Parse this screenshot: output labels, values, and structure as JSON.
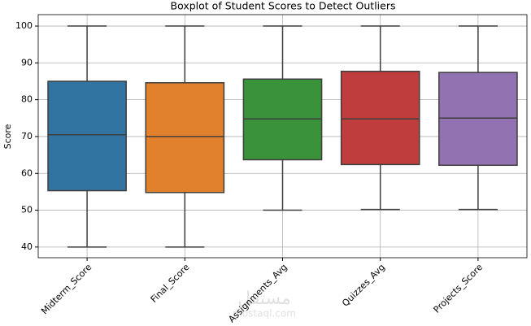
{
  "chart_data": {
    "type": "box",
    "title": "Boxplot of Student Scores to Detect Outliers",
    "y_label": "Score",
    "categories": [
      "Midterm_Score",
      "Final_Score",
      "Assignments_Avg",
      "Quizzes_Avg",
      "Projects_Score"
    ],
    "boxes": [
      {
        "min": 40,
        "q1": 55.3,
        "median": 70.5,
        "q3": 85,
        "max": 100
      },
      {
        "min": 40,
        "q1": 54.8,
        "median": 70,
        "q3": 84.6,
        "max": 100
      },
      {
        "min": 50,
        "q1": 63.7,
        "median": 74.8,
        "q3": 85.6,
        "max": 100
      },
      {
        "min": 50.2,
        "q1": 62.4,
        "median": 74.8,
        "q3": 87.7,
        "max": 100
      },
      {
        "min": 50.2,
        "q1": 62.2,
        "median": 75,
        "q3": 87.4,
        "max": 100
      }
    ],
    "colors": [
      "#3274a1",
      "#e1812c",
      "#3a923a",
      "#c03d3e",
      "#9372b2"
    ],
    "ylim": [
      37.1,
      103.1
    ],
    "yticks": [
      40,
      50,
      60,
      70,
      80,
      90,
      100
    ],
    "grid": true
  },
  "watermark": [
    "مستقل",
    "mostaql.com"
  ]
}
